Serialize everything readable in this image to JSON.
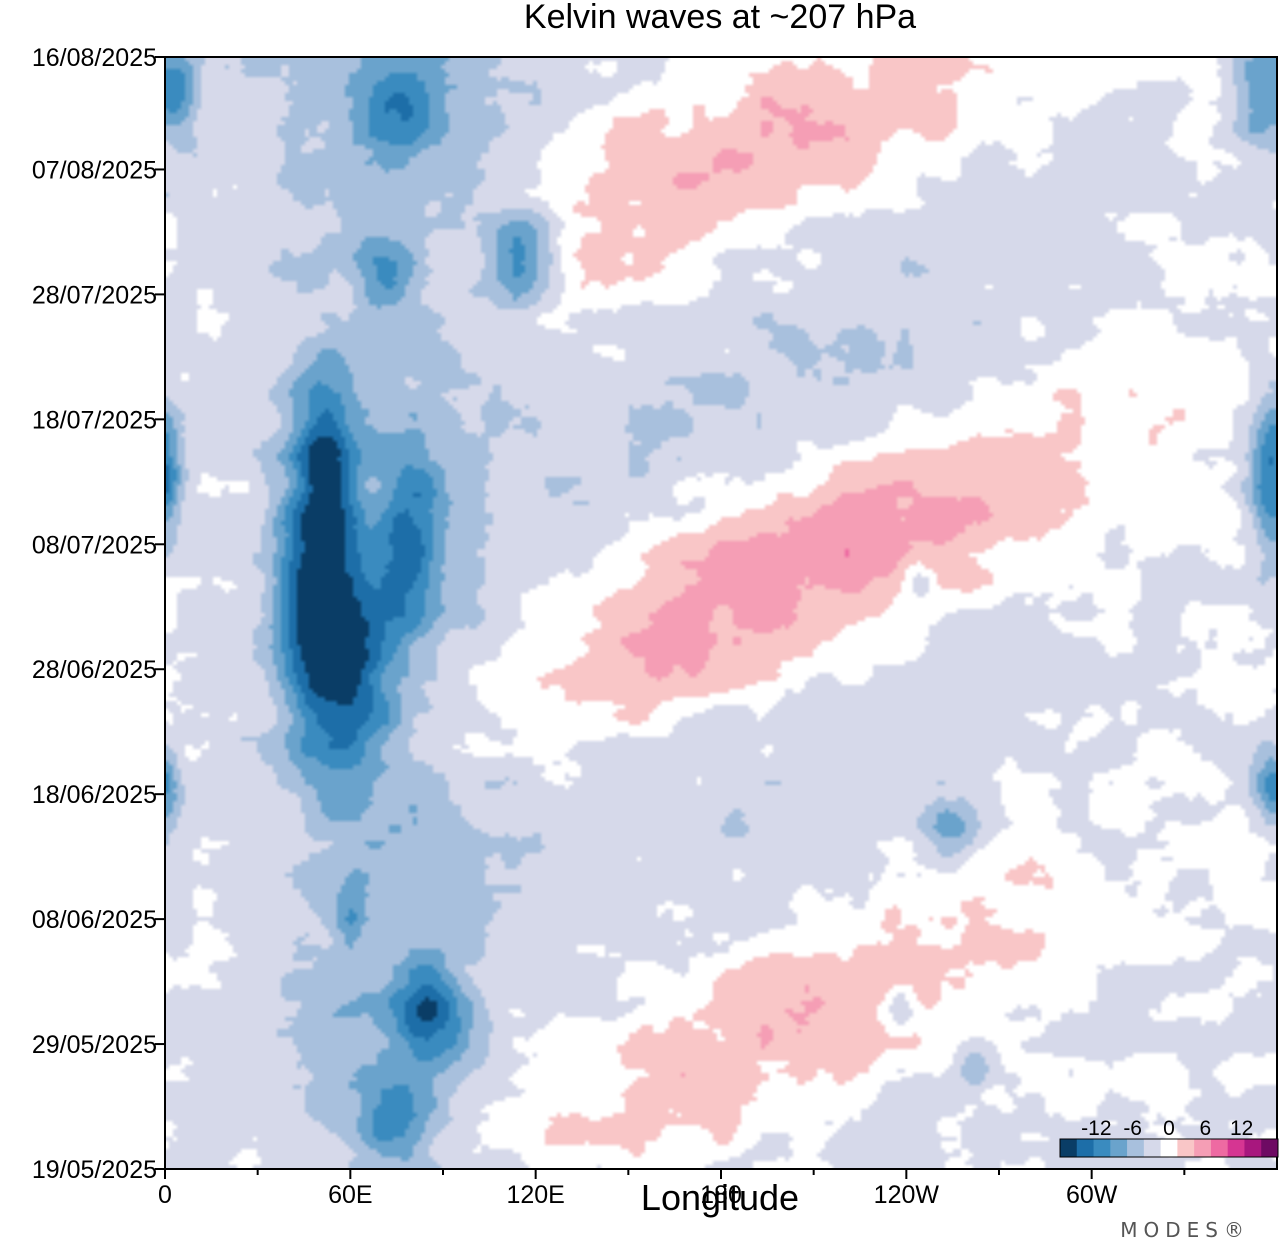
{
  "chart_data": {
    "type": "heatmap",
    "title": "Kelvin waves at ~207 hPa",
    "xlabel": "Longitude",
    "ylabel": "",
    "x_ticks": [
      "0",
      "60E",
      "120E",
      "180",
      "120W",
      "60W"
    ],
    "x_tick_values": [
      0,
      60,
      120,
      180,
      240,
      300
    ],
    "xlim": [
      0,
      360
    ],
    "y_ticks": [
      "19/05/2025",
      "29/05/2025",
      "08/06/2025",
      "18/06/2025",
      "28/06/2025",
      "08/07/2025",
      "18/07/2025",
      "28/07/2025",
      "07/08/2025",
      "16/08/2025"
    ],
    "y_tick_values": [
      0,
      10,
      20,
      30,
      40,
      50,
      60,
      70,
      80,
      89
    ],
    "ylim": [
      0,
      89
    ],
    "colorbar": {
      "labels": [
        "-12",
        "-6",
        "0",
        "6",
        "12"
      ],
      "label_values": [
        -12,
        -6,
        0,
        6,
        12
      ],
      "levels": [
        -15,
        -12,
        -9,
        -6,
        -3,
        0,
        3,
        6,
        9,
        12,
        15
      ],
      "colors": [
        "#0a3d66",
        "#1d6ea8",
        "#3a8bbf",
        "#6aa3cc",
        "#a8c0dd",
        "#d6d9ea",
        "#ffffff",
        "#f9c6c7",
        "#f59eb5",
        "#ee6aa2",
        "#d63592",
        "#a8177e",
        "#6e0a63"
      ]
    },
    "anomaly_features": [
      {
        "lon": 58,
        "day": 40,
        "value": -11.5,
        "dlon": 16,
        "dday": 10
      },
      {
        "lon": 48,
        "day": 48,
        "value": -10.5,
        "dlon": 12,
        "dday": 10
      },
      {
        "lon": 80,
        "day": 50,
        "value": -9.5,
        "dlon": 9,
        "dday": 6
      },
      {
        "lon": 52,
        "day": 58,
        "value": -9,
        "dlon": 9,
        "dday": 6
      },
      {
        "lon": 115,
        "day": 73,
        "value": -11.5,
        "dlon": 11,
        "dday": 4
      },
      {
        "lon": 85,
        "day": 12,
        "value": -10.5,
        "dlon": 11,
        "dday": 4
      },
      {
        "lon": 75,
        "day": 4,
        "value": -8,
        "dlon": 12,
        "dday": 3
      },
      {
        "lon": 72,
        "day": 72,
        "value": -6.5,
        "dlon": 9,
        "dday": 3
      },
      {
        "lon": 75,
        "day": 85,
        "value": -7,
        "dlon": 12,
        "dday": 4
      },
      {
        "lon": 5,
        "day": 86,
        "value": -6,
        "dlon": 6,
        "dday": 4
      },
      {
        "lon": 355,
        "day": 86,
        "value": -8,
        "dlon": 10,
        "dday": 4
      },
      {
        "lon": 0,
        "day": 57,
        "value": -6,
        "dlon": 6,
        "dday": 5
      },
      {
        "lon": 357,
        "day": 55,
        "value": -8,
        "dlon": 7,
        "dday": 6
      },
      {
        "lon": 357,
        "day": 31,
        "value": -6,
        "dlon": 6,
        "dday": 3
      },
      {
        "lon": 0,
        "day": 30,
        "value": -5,
        "dlon": 5,
        "dday": 3
      },
      {
        "lon": 255,
        "day": 27,
        "value": -6.5,
        "dlon": 10,
        "dday": 2
      },
      {
        "lon": 245,
        "day": 47,
        "value": -5,
        "dlon": 5,
        "dday": 2
      },
      {
        "lon": 262,
        "day": 8,
        "value": -5,
        "dlon": 6,
        "dday": 2
      },
      {
        "lon": 238,
        "day": 13,
        "value": -5,
        "dlon": 4,
        "dday": 2
      },
      {
        "lon": 60,
        "day": 20,
        "value": -5,
        "dlon": 5,
        "dday": 3
      }
    ]
  },
  "branding": {
    "text": "MODES®"
  }
}
